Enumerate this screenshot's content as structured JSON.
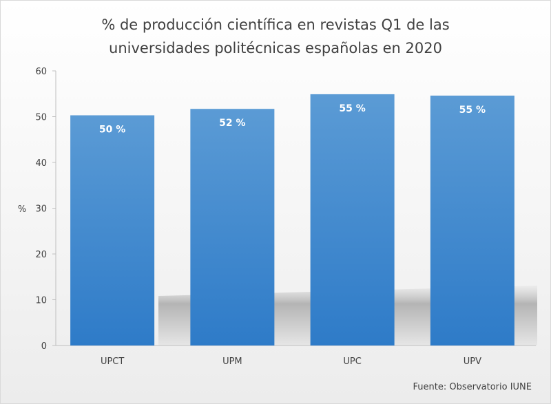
{
  "chart_data": {
    "type": "bar",
    "title_lines": [
      "% de producción científica en revistas Q1 de las",
      "universidades politécnicas españolas en 2020"
    ],
    "categories": [
      "UPCT",
      "UPM",
      "UPC",
      "UPV"
    ],
    "values": [
      50.3,
      51.7,
      54.9,
      54.6
    ],
    "data_labels": [
      "50 %",
      "52 %",
      "55 %",
      "55 %"
    ],
    "xlabel": "",
    "ylabel": "%",
    "ylim": [
      0,
      60
    ],
    "yticks": [
      "0",
      "10",
      "20",
      "30",
      "40",
      "50",
      "60"
    ],
    "grid": false,
    "legend": "none",
    "source": "Fuente: Observatorio IUNE",
    "colors": {
      "bar_top": "#5b9bd5",
      "bar_bottom": "#2e7bc8",
      "text": "#404040"
    }
  }
}
